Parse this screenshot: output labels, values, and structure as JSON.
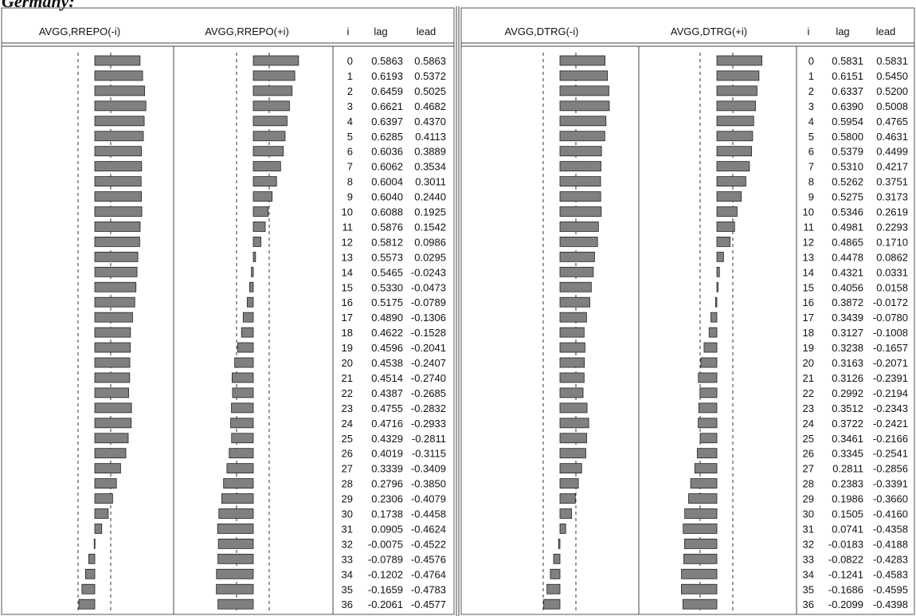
{
  "title": "Germany:",
  "panels": [
    {
      "headers": [
        "AVGG,RREPO(-i)",
        "AVGG,RREPO(+i)",
        "i",
        "lag",
        "lead"
      ],
      "rows": [
        [
          "0",
          "0.5863",
          "0.5863"
        ],
        [
          "1",
          "0.6193",
          "0.5372"
        ],
        [
          "2",
          "0.6459",
          "0.5025"
        ],
        [
          "3",
          "0.6621",
          "0.4682"
        ],
        [
          "4",
          "0.6397",
          "0.4370"
        ],
        [
          "5",
          "0.6285",
          "0.4113"
        ],
        [
          "6",
          "0.6036",
          "0.3889"
        ],
        [
          "7",
          "0.6062",
          "0.3534"
        ],
        [
          "8",
          "0.6004",
          "0.3011"
        ],
        [
          "9",
          "0.6040",
          "0.2440"
        ],
        [
          "10",
          "0.6088",
          "0.1925"
        ],
        [
          "11",
          "0.5876",
          "0.1542"
        ],
        [
          "12",
          "0.5812",
          "0.0986"
        ],
        [
          "13",
          "0.5573",
          "0.0295"
        ],
        [
          "14",
          "0.5465",
          "-0.0243"
        ],
        [
          "15",
          "0.5330",
          "-0.0473"
        ],
        [
          "16",
          "0.5175",
          "-0.0789"
        ],
        [
          "17",
          "0.4890",
          "-0.1306"
        ],
        [
          "18",
          "0.4622",
          "-0.1528"
        ],
        [
          "19",
          "0.4596",
          "-0.2041"
        ],
        [
          "20",
          "0.4538",
          "-0.2407"
        ],
        [
          "21",
          "0.4514",
          "-0.2740"
        ],
        [
          "22",
          "0.4387",
          "-0.2685"
        ],
        [
          "23",
          "0.4755",
          "-0.2832"
        ],
        [
          "24",
          "0.4716",
          "-0.2933"
        ],
        [
          "25",
          "0.4329",
          "-0.2811"
        ],
        [
          "26",
          "0.4019",
          "-0.3115"
        ],
        [
          "27",
          "0.3339",
          "-0.3409"
        ],
        [
          "28",
          "0.2796",
          "-0.3850"
        ],
        [
          "29",
          "0.2306",
          "-0.4079"
        ],
        [
          "30",
          "0.1738",
          "-0.4458"
        ],
        [
          "31",
          "0.0905",
          "-0.4624"
        ],
        [
          "32",
          "-0.0075",
          "-0.4522"
        ],
        [
          "33",
          "-0.0789",
          "-0.4576"
        ],
        [
          "34",
          "-0.1202",
          "-0.4764"
        ],
        [
          "35",
          "-0.1659",
          "-0.4783"
        ],
        [
          "36",
          "-0.2061",
          "-0.4577"
        ]
      ]
    },
    {
      "headers": [
        "AVGG,DTRG(-i)",
        "AVGG,DTRG(+i)",
        "i",
        "lag",
        "lead"
      ],
      "rows": [
        [
          "0",
          "0.5831",
          "0.5831"
        ],
        [
          "1",
          "0.6151",
          "0.5450"
        ],
        [
          "2",
          "0.6337",
          "0.5200"
        ],
        [
          "3",
          "0.6390",
          "0.5008"
        ],
        [
          "4",
          "0.5954",
          "0.4765"
        ],
        [
          "5",
          "0.5800",
          "0.4631"
        ],
        [
          "6",
          "0.5379",
          "0.4499"
        ],
        [
          "7",
          "0.5310",
          "0.4217"
        ],
        [
          "8",
          "0.5262",
          "0.3751"
        ],
        [
          "9",
          "0.5275",
          "0.3173"
        ],
        [
          "10",
          "0.5346",
          "0.2619"
        ],
        [
          "11",
          "0.4981",
          "0.2293"
        ],
        [
          "12",
          "0.4865",
          "0.1710"
        ],
        [
          "13",
          "0.4478",
          "0.0862"
        ],
        [
          "14",
          "0.4321",
          "0.0331"
        ],
        [
          "15",
          "0.4056",
          "0.0158"
        ],
        [
          "16",
          "0.3872",
          "-0.0172"
        ],
        [
          "17",
          "0.3439",
          "-0.0780"
        ],
        [
          "18",
          "0.3127",
          "-0.1008"
        ],
        [
          "19",
          "0.3238",
          "-0.1657"
        ],
        [
          "20",
          "0.3163",
          "-0.2071"
        ],
        [
          "21",
          "0.3126",
          "-0.2391"
        ],
        [
          "22",
          "0.2992",
          "-0.2194"
        ],
        [
          "23",
          "0.3512",
          "-0.2343"
        ],
        [
          "24",
          "0.3722",
          "-0.2421"
        ],
        [
          "25",
          "0.3461",
          "-0.2166"
        ],
        [
          "26",
          "0.3345",
          "-0.2541"
        ],
        [
          "27",
          "0.2811",
          "-0.2856"
        ],
        [
          "28",
          "0.2383",
          "-0.3391"
        ],
        [
          "29",
          "0.1986",
          "-0.3660"
        ],
        [
          "30",
          "0.1505",
          "-0.4160"
        ],
        [
          "31",
          "0.0741",
          "-0.4358"
        ],
        [
          "32",
          "-0.0183",
          "-0.4188"
        ],
        [
          "33",
          "-0.0822",
          "-0.4283"
        ],
        [
          "34",
          "-0.1241",
          "-0.4583"
        ],
        [
          "35",
          "-0.1686",
          "-0.4595"
        ],
        [
          "36",
          "-0.2099",
          "-0.4398"
        ]
      ]
    }
  ]
}
